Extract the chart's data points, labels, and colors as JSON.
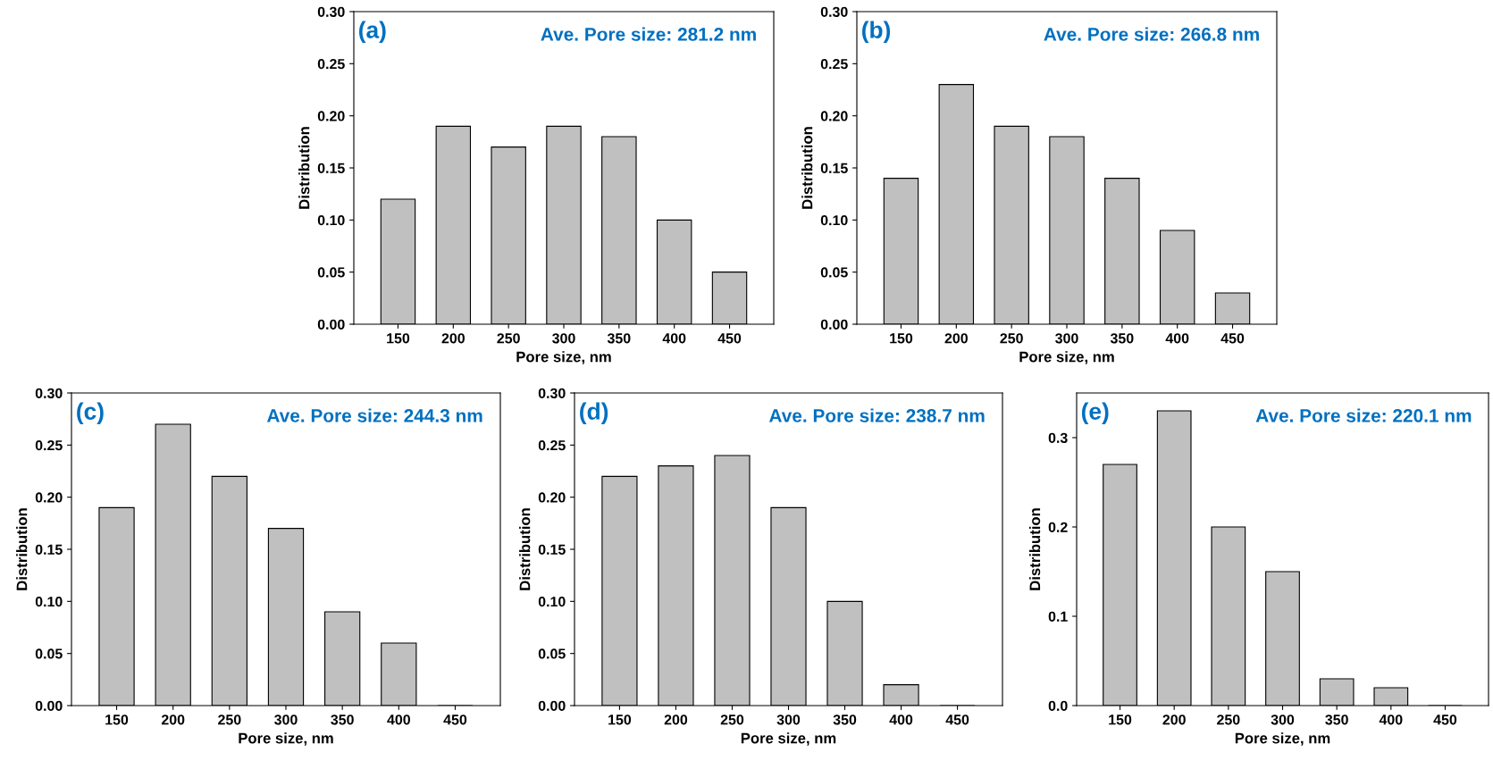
{
  "chart_data": [
    {
      "type": "bar",
      "xlabel": "Pore size, nm",
      "ylabel": "Distribution",
      "categories": [
        "150",
        "200",
        "250",
        "300",
        "350",
        "400",
        "450"
      ],
      "values": [
        0.12,
        0.19,
        0.17,
        0.19,
        0.18,
        0.1,
        0.05
      ],
      "color": "#c0c0c0",
      "ylim": [
        0,
        0.3
      ],
      "yticks": [
        {
          "value": 0,
          "label": "0.00"
        },
        {
          "value": 0.05,
          "label": "0.05"
        },
        {
          "value": 0.1,
          "label": "0.10"
        },
        {
          "value": 0.15,
          "label": "0.15"
        },
        {
          "value": 0.2,
          "label": "0.20"
        },
        {
          "value": 0.25,
          "label": "0.25"
        },
        {
          "value": 0.3,
          "label": "0.30"
        }
      ],
      "grid": false,
      "annotations": [
        "(a)",
        "Ave. Pore size: 281.2 nm"
      ]
    },
    {
      "type": "bar",
      "xlabel": "Pore size, nm",
      "ylabel": "Distribution",
      "categories": [
        "150",
        "200",
        "250",
        "300",
        "350",
        "400",
        "450"
      ],
      "values": [
        0.14,
        0.23,
        0.19,
        0.18,
        0.14,
        0.09,
        0.03
      ],
      "color": "#c0c0c0",
      "ylim": [
        0,
        0.3
      ],
      "yticks": [
        {
          "value": 0,
          "label": "0.00"
        },
        {
          "value": 0.05,
          "label": "0.05"
        },
        {
          "value": 0.1,
          "label": "0.10"
        },
        {
          "value": 0.15,
          "label": "0.15"
        },
        {
          "value": 0.2,
          "label": "0.20"
        },
        {
          "value": 0.25,
          "label": "0.25"
        },
        {
          "value": 0.3,
          "label": "0.30"
        }
      ],
      "grid": false,
      "annotations": [
        "(b)",
        "Ave. Pore size: 266.8 nm"
      ]
    },
    {
      "type": "bar",
      "xlabel": "Pore size, nm",
      "ylabel": "Distribution",
      "categories": [
        "150",
        "200",
        "250",
        "300",
        "350",
        "400",
        "450"
      ],
      "values": [
        0.19,
        0.27,
        0.22,
        0.17,
        0.09,
        0.06,
        0
      ],
      "color": "#c0c0c0",
      "ylim": [
        0,
        0.3
      ],
      "yticks": [
        {
          "value": 0,
          "label": "0.00"
        },
        {
          "value": 0.05,
          "label": "0.05"
        },
        {
          "value": 0.1,
          "label": "0.10"
        },
        {
          "value": 0.15,
          "label": "0.15"
        },
        {
          "value": 0.2,
          "label": "0.20"
        },
        {
          "value": 0.25,
          "label": "0.25"
        },
        {
          "value": 0.3,
          "label": "0.30"
        }
      ],
      "grid": false,
      "annotations": [
        "(c)",
        "Ave. Pore size: 244.3 nm"
      ]
    },
    {
      "type": "bar",
      "xlabel": "Pore size, nm",
      "ylabel": "Distribution",
      "categories": [
        "150",
        "200",
        "250",
        "300",
        "350",
        "400",
        "450"
      ],
      "values": [
        0.22,
        0.23,
        0.24,
        0.19,
        0.1,
        0.02,
        0
      ],
      "color": "#c0c0c0",
      "ylim": [
        0,
        0.3
      ],
      "yticks": [
        {
          "value": 0,
          "label": "0.00"
        },
        {
          "value": 0.05,
          "label": "0.05"
        },
        {
          "value": 0.1,
          "label": "0.10"
        },
        {
          "value": 0.15,
          "label": "0.15"
        },
        {
          "value": 0.2,
          "label": "0.20"
        },
        {
          "value": 0.25,
          "label": "0.25"
        },
        {
          "value": 0.3,
          "label": "0.30"
        }
      ],
      "grid": false,
      "annotations": [
        "(d)",
        "Ave. Pore size: 238.7 nm"
      ]
    },
    {
      "type": "bar",
      "xlabel": "Pore size, nm",
      "ylabel": "Distribution",
      "categories": [
        "150",
        "200",
        "250",
        "300",
        "350",
        "400",
        "450"
      ],
      "values": [
        0.27,
        0.33,
        0.2,
        0.15,
        0.03,
        0.02,
        0
      ],
      "color": "#c0c0c0",
      "ylim": [
        0,
        0.35
      ],
      "yticks": [
        {
          "value": 0,
          "label": "0.0"
        },
        {
          "value": 0.1,
          "label": "0.1"
        },
        {
          "value": 0.2,
          "label": "0.2"
        },
        {
          "value": 0.3,
          "label": "0.3"
        }
      ],
      "grid": false,
      "annotations": [
        "(e)",
        "Ave. Pore size: 220.1 nm"
      ]
    }
  ]
}
